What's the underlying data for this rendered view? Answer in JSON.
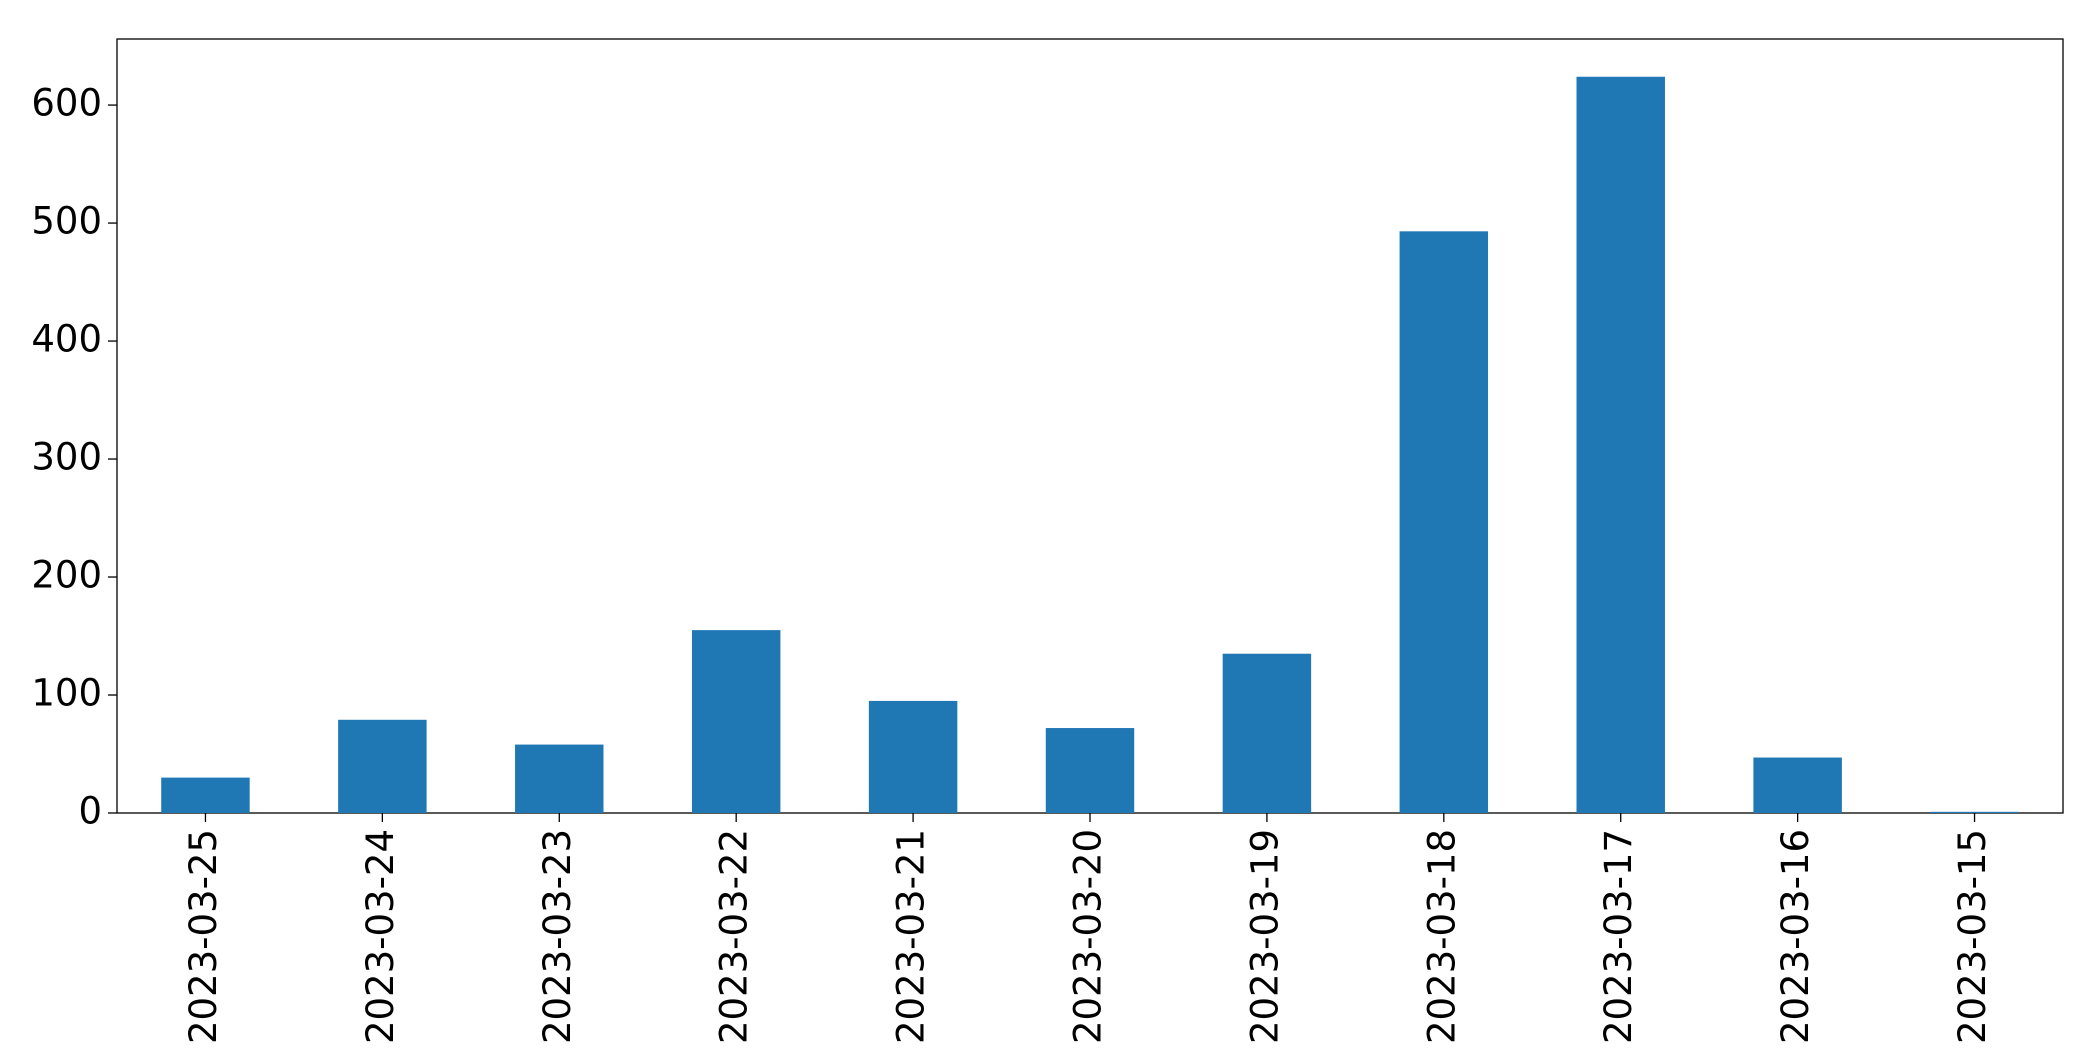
{
  "chart_data": {
    "type": "bar",
    "categories": [
      "2023-03-25",
      "2023-03-24",
      "2023-03-23",
      "2023-03-22",
      "2023-03-21",
      "2023-03-20",
      "2023-03-19",
      "2023-03-18",
      "2023-03-17",
      "2023-03-16",
      "2023-03-15"
    ],
    "values": [
      30,
      79,
      58,
      155,
      95,
      72,
      135,
      493,
      624,
      47,
      1
    ],
    "color": "#1f77b4",
    "ylim": [
      0,
      656
    ],
    "yticks": [
      0,
      100,
      200,
      300,
      400,
      500,
      600
    ],
    "grid": false
  }
}
